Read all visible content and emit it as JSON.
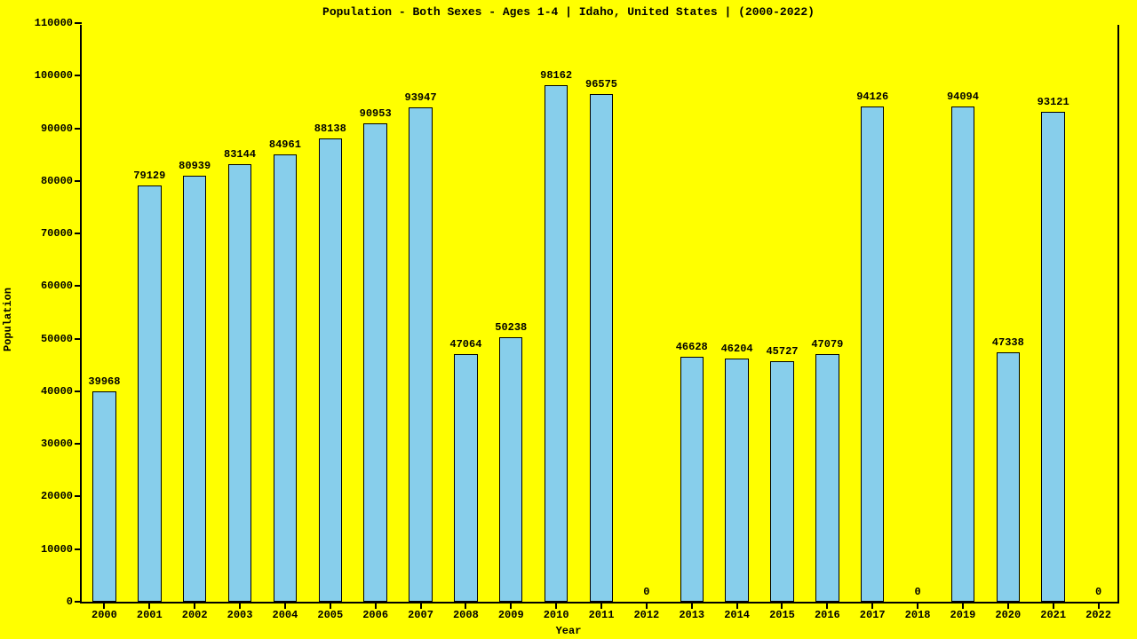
{
  "chart": {
    "type": "bar",
    "title": "Population - Both Sexes - Ages 1-4 | Idaho, United States |  (2000-2022)",
    "title_fontsize": 13,
    "xlabel": "Year",
    "ylabel": "Population",
    "label_fontsize": 12,
    "ticklabel_fontsize": 12,
    "barlabel_fontsize": 12,
    "background_color": "#ffff00",
    "bar_color": "#87ceeb",
    "bar_border_color": "#000000",
    "axis_color": "#000000",
    "text_color": "#000000",
    "ylim": [
      0,
      110000
    ],
    "ytick_step": 10000,
    "yticks": [
      0,
      10000,
      20000,
      30000,
      40000,
      50000,
      60000,
      70000,
      80000,
      90000,
      100000,
      110000
    ],
    "categories": [
      "2000",
      "2001",
      "2002",
      "2003",
      "2004",
      "2005",
      "2006",
      "2007",
      "2008",
      "2009",
      "2010",
      "2011",
      "2012",
      "2013",
      "2014",
      "2015",
      "2016",
      "2017",
      "2018",
      "2019",
      "2020",
      "2021",
      "2022"
    ],
    "values": [
      39968,
      79129,
      80939,
      83144,
      84961,
      88138,
      90953,
      93947,
      47064,
      50238,
      98162,
      96575,
      0,
      46628,
      46204,
      45727,
      47079,
      94126,
      0,
      94094,
      47338,
      93121,
      0
    ],
    "bar_width_ratio": 0.52
  }
}
